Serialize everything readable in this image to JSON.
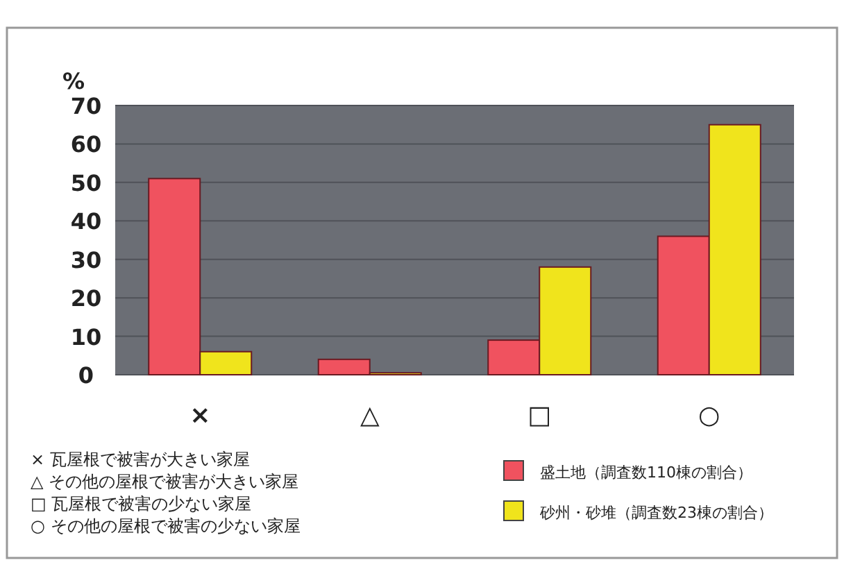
{
  "chart_data": {
    "type": "bar",
    "ylabel": "%",
    "categories": [
      "×",
      "△",
      "□",
      "○"
    ],
    "series": [
      {
        "name": "盛土地（調査数110棟の割合）",
        "color": "#f0525f",
        "values": [
          51,
          4,
          9,
          36
        ]
      },
      {
        "name": "砂州・砂堆（調査数23棟の割合）",
        "color": "#f0e41c",
        "values": [
          6,
          0.5,
          28,
          65
        ]
      }
    ],
    "ylim": [
      0,
      70
    ],
    "yticks": [
      0,
      10,
      20,
      30,
      40,
      50,
      60,
      70
    ],
    "grid": "y",
    "legend": "bottom right",
    "annotations": [
      "× 瓦屋根で被害が大きい家屋",
      "△ その他の屋根で被害が大きい家屋",
      "□ 瓦屋根で被害の少ない家屋",
      "○ その他の屋根で被害の少ない家屋"
    ]
  }
}
